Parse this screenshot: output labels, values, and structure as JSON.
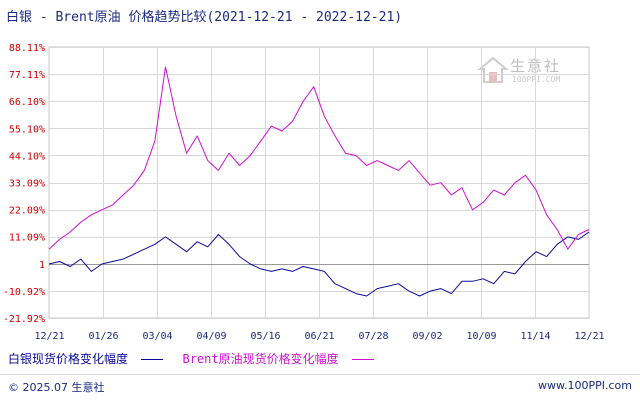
{
  "title": "白银 - Brent原油 价格趋势比较(2021-12-21 - 2022-12-21)",
  "watermark": {
    "text": "生意社",
    "sub": "100PPI.COM"
  },
  "legend": {
    "silver": "白银现货价格变化幅度",
    "brent": "Brent原油现货价格变化幅度"
  },
  "footer": {
    "copyright": "© 2025.07 生意社",
    "site": "www.100PPI.com"
  },
  "colors": {
    "silver": "#0a0a9a",
    "brent": "#d010d0",
    "axis": "#cc0000",
    "grid": "#d8d8d8",
    "label": "#1a2a80"
  },
  "chart_data": {
    "type": "line",
    "title": "白银 - Brent原油 价格趋势比较(2021-12-21 - 2022-12-21)",
    "xlabel": "",
    "ylabel": "",
    "x_tick_labels": [
      "12/21",
      "01/26",
      "03/04",
      "04/09",
      "05/16",
      "06/21",
      "07/28",
      "09/02",
      "10/09",
      "11/14",
      "12/21"
    ],
    "y_tick_labels": [
      "88.11%",
      "77.11%",
      "66.10%",
      "55.10%",
      "44.10%",
      "33.09%",
      "22.09%",
      "11.09%",
      "1",
      "-10.92%",
      "-21.92%"
    ],
    "y_tick_values": [
      88.11,
      77.11,
      66.1,
      55.1,
      44.1,
      33.09,
      22.09,
      11.09,
      0,
      -10.92,
      -21.92
    ],
    "ylim": [
      -21.92,
      88.11
    ],
    "grid": true,
    "legend_position": "bottom",
    "x": [
      "12/21",
      "12/28",
      "01/04",
      "01/11",
      "01/18",
      "01/26",
      "02/02",
      "02/09",
      "02/16",
      "02/23",
      "03/02",
      "03/04",
      "03/09",
      "03/16",
      "03/23",
      "03/30",
      "04/09",
      "04/16",
      "04/23",
      "04/30",
      "05/07",
      "05/16",
      "05/23",
      "05/30",
      "06/06",
      "06/13",
      "06/21",
      "06/28",
      "07/05",
      "07/12",
      "07/19",
      "07/28",
      "08/04",
      "08/11",
      "08/18",
      "08/25",
      "09/02",
      "09/09",
      "09/16",
      "09/23",
      "09/30",
      "10/09",
      "10/16",
      "10/23",
      "10/30",
      "11/06",
      "11/14",
      "11/21",
      "11/28",
      "12/05",
      "12/12",
      "12/21"
    ],
    "series": [
      {
        "name": "白银现货价格变化幅度",
        "values": [
          0,
          1,
          -1,
          2,
          -3,
          0,
          1,
          2,
          4,
          6,
          8,
          11,
          8,
          5,
          9,
          7,
          12,
          8,
          3,
          0,
          -2,
          -3,
          -2,
          -3,
          -1,
          -2,
          -3,
          -8,
          -10,
          -12,
          -13,
          -10,
          -9,
          -8,
          -11,
          -13,
          -11,
          -10,
          -12,
          -7,
          -7,
          -6,
          -8,
          -3,
          -4,
          1,
          5,
          3,
          8,
          11,
          10,
          13
        ]
      },
      {
        "name": "Brent原油现货价格变化幅度",
        "values": [
          6,
          10,
          13,
          17,
          20,
          22,
          24,
          28,
          32,
          38,
          50,
          80,
          60,
          45,
          52,
          42,
          38,
          45,
          40,
          44,
          50,
          56,
          54,
          58,
          66,
          72,
          60,
          52,
          45,
          44,
          40,
          42,
          40,
          38,
          42,
          37,
          32,
          33,
          28,
          31,
          22,
          25,
          30,
          28,
          33,
          36,
          30,
          20,
          14,
          6,
          12,
          14
        ]
      }
    ]
  }
}
